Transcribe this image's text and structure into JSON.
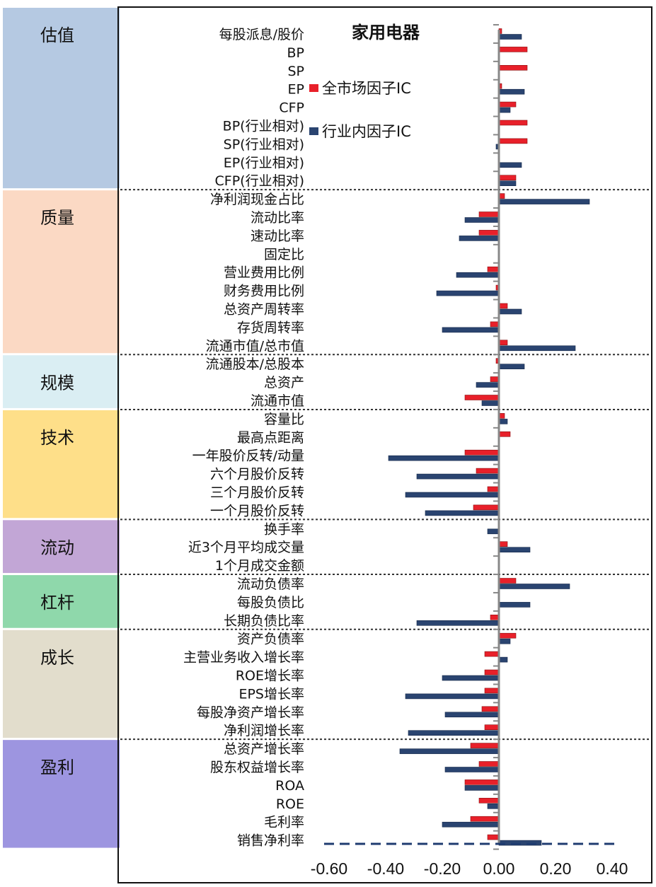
{
  "chart_data": {
    "type": "bar",
    "orientation": "horizontal",
    "title": "家用电器",
    "categories": [
      "每股派息/股价",
      "BP",
      "SP",
      "EP",
      "CFP",
      "BP(行业相对)",
      "SP(行业相对)",
      "EP(行业相对)",
      "CFP(行业相对)",
      "净利润现金占比",
      "流动比率",
      "速动比率",
      "固定比",
      "营业费用比例",
      "财务费用比例",
      "总资产周转率",
      "存货周转率",
      "流通市值/总市值",
      "流通股本/总股本",
      "总资产",
      "流通市值",
      "容量比",
      "最高点距离",
      "一年股价反转/动量",
      "六个月股价反转",
      "三个月股价反转",
      "一个月股价反转",
      "换手率",
      "近3个月平均成交量",
      "1个月成交金额",
      "流动负债率",
      "每股负债比",
      "长期负债比率",
      "资产负债率",
      "主营业务收入增长率",
      "ROE增长率",
      "EPS增长率",
      "每股净资产增长率",
      "净利润增长率",
      "总资产增长率",
      "股东权益增长率",
      "ROA",
      "ROE",
      "毛利率",
      "销售净利率"
    ],
    "series": [
      {
        "name": "全市场因子IC",
        "color": "#e8202a",
        "values": [
          0.01,
          0.1,
          0.1,
          0.01,
          0.06,
          0.1,
          0.1,
          0.0,
          0.06,
          0.02,
          -0.07,
          -0.07,
          0.0,
          -0.04,
          -0.01,
          0.03,
          -0.03,
          0.03,
          -0.01,
          -0.03,
          -0.12,
          0.02,
          0.04,
          -0.12,
          -0.08,
          -0.04,
          -0.09,
          0.0,
          0.03,
          0.0,
          0.06,
          0.0,
          -0.03,
          0.06,
          -0.05,
          -0.05,
          -0.05,
          -0.06,
          -0.05,
          -0.1,
          -0.07,
          -0.12,
          -0.07,
          -0.1,
          -0.04
        ]
      },
      {
        "name": "行业内因子IC",
        "color": "#2a4470",
        "values": [
          0.08,
          0.0,
          0.0,
          0.09,
          0.04,
          0.0,
          -0.01,
          0.08,
          0.06,
          0.32,
          -0.12,
          -0.14,
          0.0,
          -0.15,
          -0.22,
          0.08,
          -0.2,
          0.27,
          0.09,
          -0.08,
          -0.06,
          0.03,
          0.0,
          -0.39,
          -0.29,
          -0.33,
          -0.26,
          -0.04,
          0.11,
          0.0,
          0.25,
          0.11,
          -0.29,
          0.04,
          0.03,
          -0.2,
          -0.33,
          -0.19,
          -0.32,
          -0.35,
          -0.19,
          -0.12,
          -0.04,
          -0.2,
          0.15
        ]
      }
    ],
    "xlim": [
      -0.6,
      0.4
    ],
    "xticks": [
      -0.6,
      -0.4,
      -0.2,
      0.0,
      0.2,
      0.4
    ],
    "xtick_labels": [
      "-0.60",
      "-0.40",
      "-0.20",
      "0.00",
      "0.20",
      "0.40"
    ],
    "groups": [
      {
        "label": "估值",
        "color": "#b5c9e2",
        "start": 0,
        "end": 8
      },
      {
        "label": "质量",
        "color": "#fbd9c4",
        "start": 9,
        "end": 17
      },
      {
        "label": "规模",
        "color": "#daeef3",
        "start": 18,
        "end": 20
      },
      {
        "label": "技术",
        "color": "#fedf89",
        "start": 21,
        "end": 26
      },
      {
        "label": "流动",
        "color": "#c2a6d6",
        "start": 27,
        "end": 29
      },
      {
        "label": "杠杆",
        "color": "#8fd8ab",
        "start": 30,
        "end": 32
      },
      {
        "label": "成长",
        "color": "#e2ddcc",
        "start": 33,
        "end": 38
      },
      {
        "label": "盈利",
        "color": "#9d95e0",
        "start": 39,
        "end": 44
      }
    ],
    "legend_position": "top-left, inside plot"
  }
}
